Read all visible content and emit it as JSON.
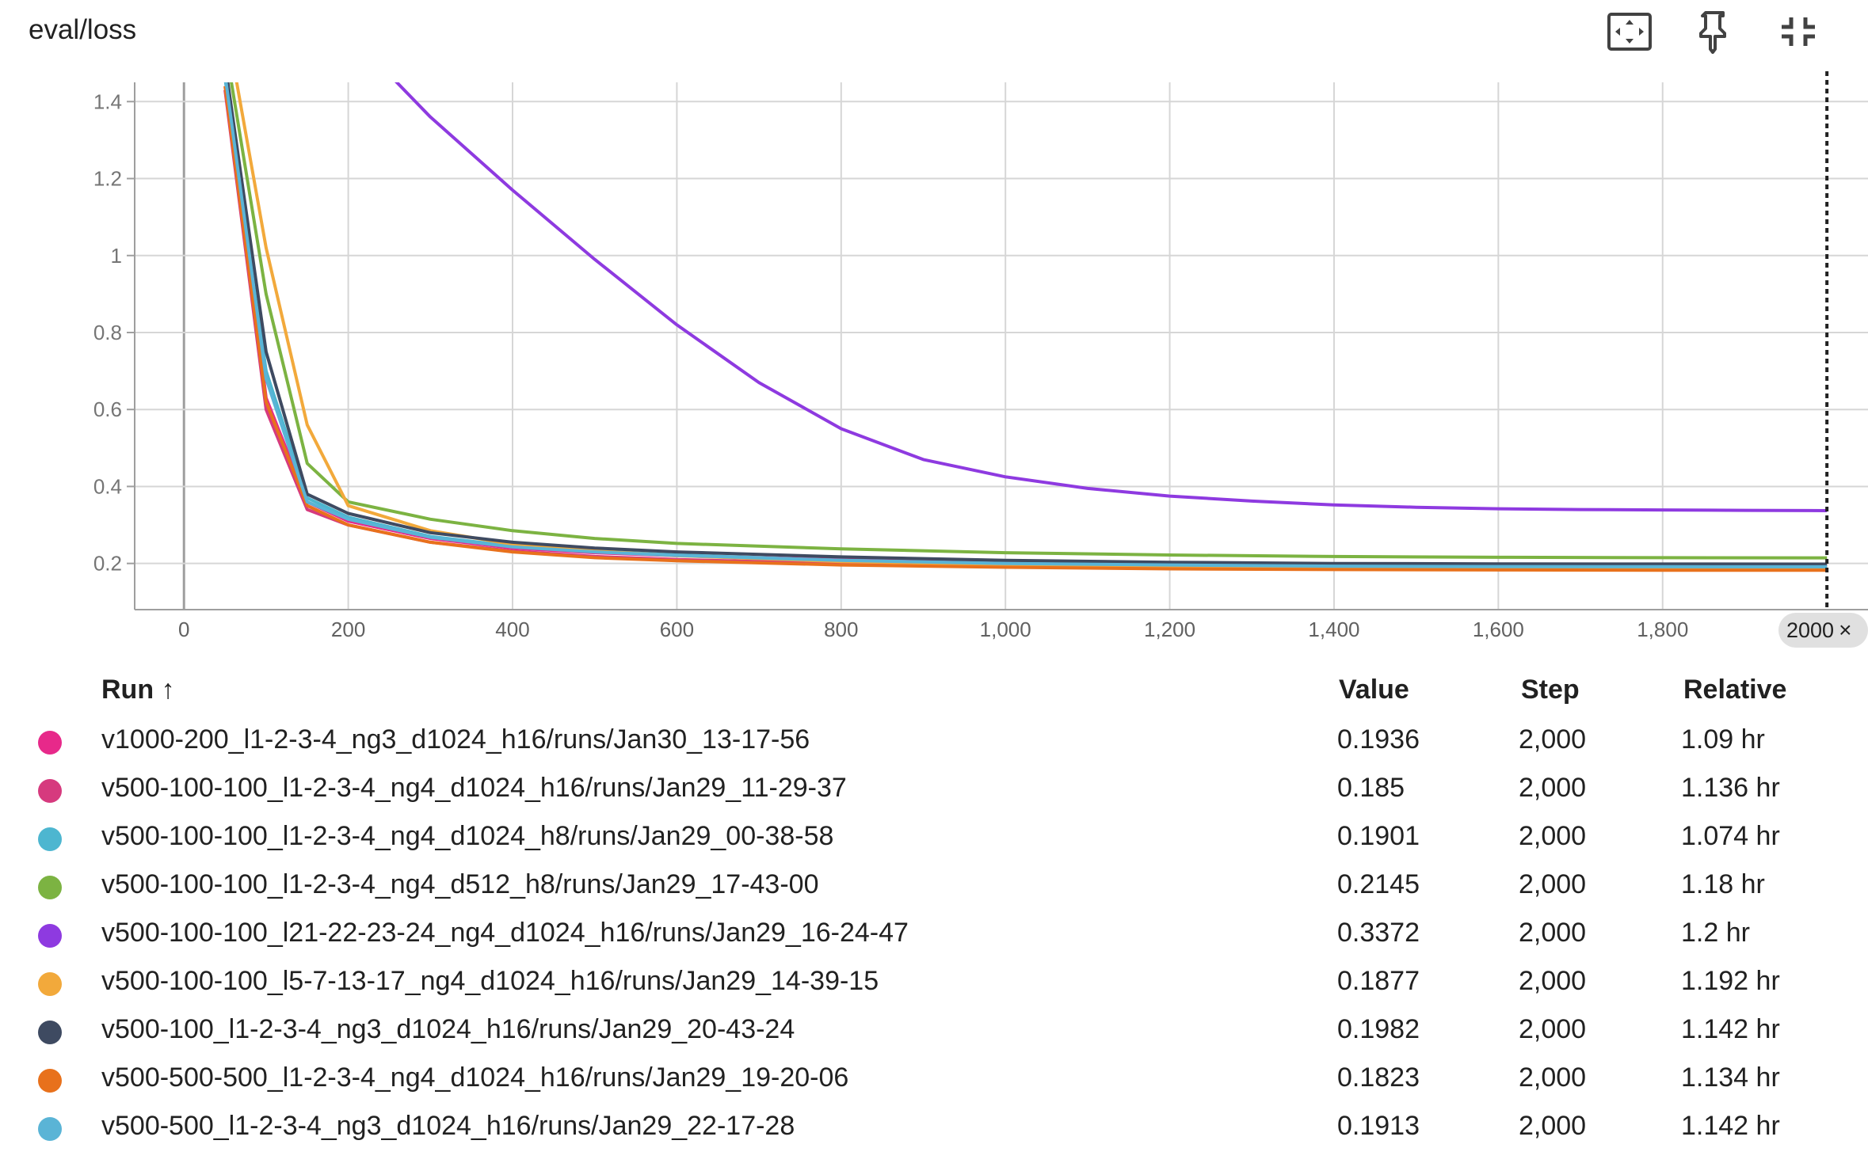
{
  "card": {
    "title": "eval/loss",
    "tools": [
      {
        "icon": "fit-to-screen-icon"
      },
      {
        "icon": "pin-icon"
      },
      {
        "icon": "collapse-icon"
      }
    ]
  },
  "chart_data": {
    "type": "line",
    "title": "eval/loss",
    "xlabel": "",
    "ylabel": "",
    "xlim": [
      -60,
      2050
    ],
    "ylim": [
      0.08,
      1.45
    ],
    "x_ticks": [
      0,
      200,
      400,
      600,
      800,
      1000,
      1200,
      1400,
      1600,
      1800
    ],
    "x_tick_labels": [
      "0",
      "200",
      "400",
      "600",
      "800",
      "1,000",
      "1,200",
      "1,400",
      "1,600",
      "1,800"
    ],
    "y_ticks": [
      0.2,
      0.4,
      0.6,
      0.8,
      1,
      1.2,
      1.4
    ],
    "y_tick_labels": [
      "0.2",
      "0.4",
      "0.6",
      "0.8",
      "1",
      "1.2",
      "1.4"
    ],
    "grid": true,
    "hover_step": 2000,
    "hover_label": "2000",
    "series": [
      {
        "name": "v1000-200_l1-2-3-4_ng3_d1024_h16/runs/Jan30_13-17-56",
        "color": "#e7298a",
        "x": [
          50,
          100,
          150,
          200,
          300,
          400,
          500,
          600,
          800,
          1000,
          1200,
          1400,
          1600,
          1800,
          2000
        ],
        "y": [
          1.48,
          0.63,
          0.36,
          0.31,
          0.265,
          0.24,
          0.228,
          0.22,
          0.21,
          0.203,
          0.199,
          0.197,
          0.195,
          0.194,
          0.1936
        ]
      },
      {
        "name": "v500-100-100_l1-2-3-4_ng4_d1024_h16/runs/Jan29_11-29-37",
        "color": "#d63a7e",
        "x": [
          50,
          100,
          150,
          200,
          300,
          400,
          500,
          600,
          800,
          1000,
          1200,
          1400,
          1600,
          1800,
          2000
        ],
        "y": [
          1.43,
          0.6,
          0.34,
          0.3,
          0.255,
          0.232,
          0.218,
          0.21,
          0.2,
          0.194,
          0.19,
          0.188,
          0.186,
          0.185,
          0.185
        ]
      },
      {
        "name": "v500-100-100_l1-2-3-4_ng4_d1024_h8/runs/Jan29_00-38-58",
        "color": "#4db6d0",
        "x": [
          50,
          100,
          150,
          200,
          300,
          400,
          500,
          600,
          800,
          1000,
          1200,
          1400,
          1600,
          1800,
          2000
        ],
        "y": [
          1.46,
          0.7,
          0.37,
          0.32,
          0.27,
          0.245,
          0.232,
          0.222,
          0.208,
          0.2,
          0.196,
          0.193,
          0.191,
          0.19,
          0.1901
        ]
      },
      {
        "name": "v500-100-100_l1-2-3-4_ng4_d512_h8/runs/Jan29_17-43-00",
        "color": "#7cb342",
        "x": [
          50,
          100,
          150,
          200,
          300,
          400,
          500,
          600,
          800,
          1000,
          1200,
          1400,
          1600,
          1800,
          2000
        ],
        "y": [
          1.55,
          0.9,
          0.46,
          0.36,
          0.315,
          0.285,
          0.265,
          0.252,
          0.238,
          0.228,
          0.222,
          0.218,
          0.216,
          0.215,
          0.2145
        ]
      },
      {
        "name": "v500-100-100_l21-22-23-24_ng4_d1024_h16/runs/Jan29_16-24-47",
        "color": "#8e3ae0",
        "x": [
          250,
          300,
          400,
          500,
          600,
          700,
          800,
          900,
          1000,
          1100,
          1200,
          1300,
          1400,
          1500,
          1600,
          1700,
          1800,
          1900,
          2000
        ],
        "y": [
          1.47,
          1.36,
          1.17,
          0.99,
          0.82,
          0.67,
          0.55,
          0.47,
          0.425,
          0.395,
          0.375,
          0.362,
          0.352,
          0.346,
          0.342,
          0.34,
          0.339,
          0.338,
          0.3372
        ]
      },
      {
        "name": "v500-100-100_l5-7-13-17_ng4_d1024_h16/runs/Jan29_14-39-15",
        "color": "#f2a93b",
        "x": [
          50,
          100,
          150,
          200,
          300,
          400,
          500,
          600,
          800,
          1000,
          1200,
          1400,
          1600,
          1800,
          2000
        ],
        "y": [
          1.62,
          1.02,
          0.56,
          0.35,
          0.285,
          0.25,
          0.232,
          0.22,
          0.205,
          0.197,
          0.193,
          0.19,
          0.189,
          0.188,
          0.1877
        ]
      },
      {
        "name": "v500-100_l1-2-3-4_ng3_d1024_h16/runs/Jan29_20-43-24",
        "color": "#3e4a61",
        "x": [
          50,
          100,
          150,
          200,
          300,
          400,
          500,
          600,
          800,
          1000,
          1200,
          1400,
          1600,
          1800,
          2000
        ],
        "y": [
          1.5,
          0.75,
          0.38,
          0.33,
          0.28,
          0.255,
          0.24,
          0.23,
          0.217,
          0.208,
          0.203,
          0.2,
          0.199,
          0.1985,
          0.1982
        ]
      },
      {
        "name": "v500-500-500_l1-2-3-4_ng4_d1024_h16/runs/Jan29_19-20-06",
        "color": "#e8711c",
        "x": [
          50,
          100,
          150,
          200,
          300,
          400,
          500,
          600,
          800,
          1000,
          1200,
          1400,
          1600,
          1800,
          2000
        ],
        "y": [
          1.44,
          0.62,
          0.35,
          0.3,
          0.255,
          0.23,
          0.215,
          0.207,
          0.196,
          0.19,
          0.186,
          0.184,
          0.183,
          0.1825,
          0.1823
        ]
      },
      {
        "name": "v500-500_l1-2-3-4_ng3_d1024_h16/runs/Jan29_22-17-28",
        "color": "#5ab4d6",
        "x": [
          50,
          100,
          150,
          200,
          300,
          400,
          500,
          600,
          800,
          1000,
          1200,
          1400,
          1600,
          1800,
          2000
        ],
        "y": [
          1.47,
          0.68,
          0.36,
          0.315,
          0.268,
          0.243,
          0.23,
          0.221,
          0.208,
          0.2,
          0.196,
          0.193,
          0.192,
          0.1915,
          0.1913
        ]
      }
    ]
  },
  "legend": {
    "headers": {
      "run": "Run ↑",
      "value": "Value",
      "step": "Step",
      "relative": "Relative"
    },
    "rows": [
      {
        "name": "v1000-200_l1-2-3-4_ng3_d1024_h16/runs/Jan30_13-17-56",
        "value": "0.1936",
        "step": "2,000",
        "relative": "1.09 hr",
        "color": "#e7298a"
      },
      {
        "name": "v500-100-100_l1-2-3-4_ng4_d1024_h16/runs/Jan29_11-29-37",
        "value": "0.185",
        "step": "2,000",
        "relative": "1.136 hr",
        "color": "#d63a7e"
      },
      {
        "name": "v500-100-100_l1-2-3-4_ng4_d1024_h8/runs/Jan29_00-38-58",
        "value": "0.1901",
        "step": "2,000",
        "relative": "1.074 hr",
        "color": "#4db6d0"
      },
      {
        "name": "v500-100-100_l1-2-3-4_ng4_d512_h8/runs/Jan29_17-43-00",
        "value": "0.2145",
        "step": "2,000",
        "relative": "1.18 hr",
        "color": "#7cb342"
      },
      {
        "name": "v500-100-100_l21-22-23-24_ng4_d1024_h16/runs/Jan29_16-24-47",
        "value": "0.3372",
        "step": "2,000",
        "relative": "1.2 hr",
        "color": "#8e3ae0"
      },
      {
        "name": "v500-100-100_l5-7-13-17_ng4_d1024_h16/runs/Jan29_14-39-15",
        "value": "0.1877",
        "step": "2,000",
        "relative": "1.192 hr",
        "color": "#f2a93b"
      },
      {
        "name": "v500-100_l1-2-3-4_ng3_d1024_h16/runs/Jan29_20-43-24",
        "value": "0.1982",
        "step": "2,000",
        "relative": "1.142 hr",
        "color": "#3e4a61"
      },
      {
        "name": "v500-500-500_l1-2-3-4_ng4_d1024_h16/runs/Jan29_19-20-06",
        "value": "0.1823",
        "step": "2,000",
        "relative": "1.134 hr",
        "color": "#e8711c"
      },
      {
        "name": "v500-500_l1-2-3-4_ng3_d1024_h16/runs/Jan29_22-17-28",
        "value": "0.1913",
        "step": "2,000",
        "relative": "1.142 hr",
        "color": "#5ab4d6"
      }
    ]
  }
}
